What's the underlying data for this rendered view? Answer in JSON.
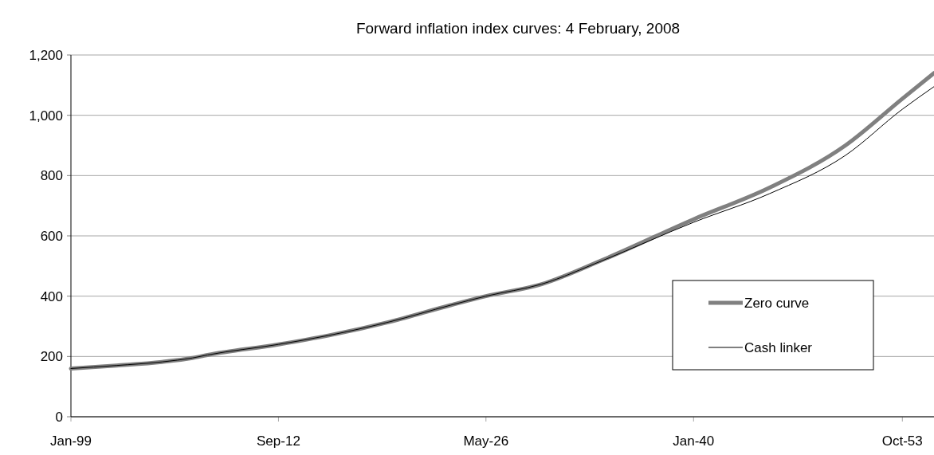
{
  "chart_data": {
    "type": "line",
    "title": "Forward inflation index curves: 4 February, 2008",
    "x": [
      "1999-01",
      "2002-01",
      "2005-01",
      "2007-01",
      "2008-01",
      "2012-09",
      "2016-01",
      "2020-01",
      "2024-01",
      "2026-05",
      "2030-01",
      "2034-01",
      "2040-01",
      "2045-01",
      "2050-01",
      "2053-10",
      "2055-11"
    ],
    "series": [
      {
        "name": "Zero curve",
        "color": "#808080",
        "values": [
          160,
          170,
          182,
          195,
          205,
          240,
          270,
          315,
          370,
          400,
          440,
          520,
          655,
          760,
          900,
          1055,
          1140
        ]
      },
      {
        "name": "Cash linker",
        "color": "#000000",
        "values": [
          160,
          170,
          182,
          195,
          205,
          240,
          270,
          315,
          370,
          400,
          440,
          518,
          645,
          740,
          867,
          1020,
          1095
        ]
      }
    ],
    "xlim": [
      "1999-01",
      "2055-11"
    ],
    "xticks": [
      {
        "value": "1999-01",
        "label": "Jan-99"
      },
      {
        "value": "2012-09",
        "label": "Sep-12"
      },
      {
        "value": "2026-05",
        "label": "May-26"
      },
      {
        "value": "2040-01",
        "label": "Jan-40"
      },
      {
        "value": "2053-10",
        "label": "Oct-53"
      }
    ],
    "ylim": [
      0,
      1200
    ],
    "yticks": [
      {
        "value": 0,
        "label": "0"
      },
      {
        "value": 200,
        "label": "200"
      },
      {
        "value": 400,
        "label": "400"
      },
      {
        "value": 600,
        "label": "600"
      },
      {
        "value": 800,
        "label": "800"
      },
      {
        "value": 1000,
        "label": "1,000"
      },
      {
        "value": 1200,
        "label": "1,200"
      }
    ],
    "grid": "y",
    "legend": "bottom right",
    "line_style": "solid"
  }
}
